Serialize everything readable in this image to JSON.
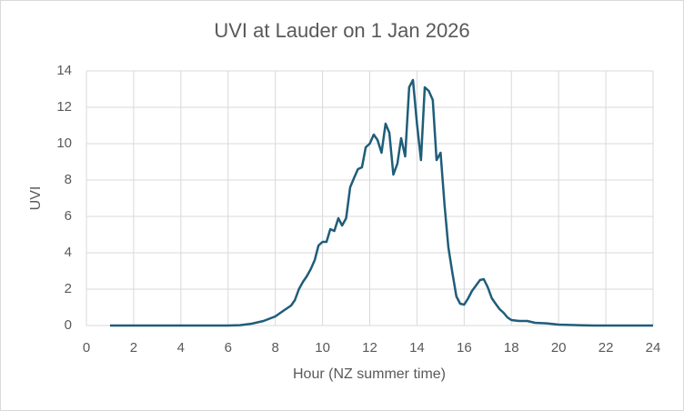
{
  "chart_data": {
    "type": "line",
    "title": "UVI at Lauder on 1 Jan 2026",
    "x_label": "Hour (NZ summer time)",
    "y_label": "UVI",
    "series": [
      {
        "name": "UVI",
        "color": "#1f5d7a",
        "x": [
          1.0,
          6.0,
          6.5,
          7.0,
          7.5,
          8.0,
          8.33,
          8.67,
          8.83,
          9.0,
          9.17,
          9.33,
          9.5,
          9.67,
          9.83,
          10.0,
          10.17,
          10.33,
          10.5,
          10.67,
          10.83,
          11.0,
          11.17,
          11.33,
          11.5,
          11.67,
          11.83,
          12.0,
          12.17,
          12.33,
          12.5,
          12.67,
          12.83,
          13.0,
          13.17,
          13.33,
          13.5,
          13.67,
          13.83,
          14.0,
          14.17,
          14.33,
          14.5,
          14.67,
          14.83,
          15.0,
          15.17,
          15.33,
          15.5,
          15.67,
          15.83,
          16.0,
          16.17,
          16.33,
          16.5,
          16.67,
          16.83,
          17.0,
          17.17,
          17.33,
          17.5,
          17.67,
          17.83,
          18.0,
          18.33,
          18.67,
          19.0,
          19.5,
          20.0,
          20.5,
          21.0,
          21.5,
          24.0
        ],
        "values": [
          0,
          0,
          0.02,
          0.1,
          0.25,
          0.5,
          0.8,
          1.1,
          1.4,
          2.0,
          2.4,
          2.7,
          3.1,
          3.6,
          4.4,
          4.6,
          4.6,
          5.3,
          5.2,
          5.9,
          5.5,
          5.9,
          7.6,
          8.1,
          8.6,
          8.7,
          9.8,
          10.0,
          10.5,
          10.2,
          9.5,
          11.1,
          10.6,
          8.3,
          8.9,
          10.3,
          9.3,
          13.1,
          13.5,
          11.1,
          9.1,
          13.1,
          12.9,
          12.4,
          9.1,
          9.5,
          6.6,
          4.3,
          2.9,
          1.6,
          1.2,
          1.15,
          1.5,
          1.9,
          2.2,
          2.5,
          2.55,
          2.1,
          1.5,
          1.2,
          0.9,
          0.7,
          0.45,
          0.3,
          0.25,
          0.25,
          0.15,
          0.12,
          0.05,
          0.03,
          0.01,
          0,
          0
        ]
      }
    ],
    "xlim": [
      0,
      24
    ],
    "xticks": [
      0,
      2,
      4,
      6,
      8,
      10,
      12,
      14,
      16,
      18,
      20,
      22,
      24
    ],
    "ylim": [
      0,
      14
    ],
    "yticks": [
      0,
      2,
      4,
      6,
      8,
      10,
      12,
      14
    ],
    "grid": true
  }
}
